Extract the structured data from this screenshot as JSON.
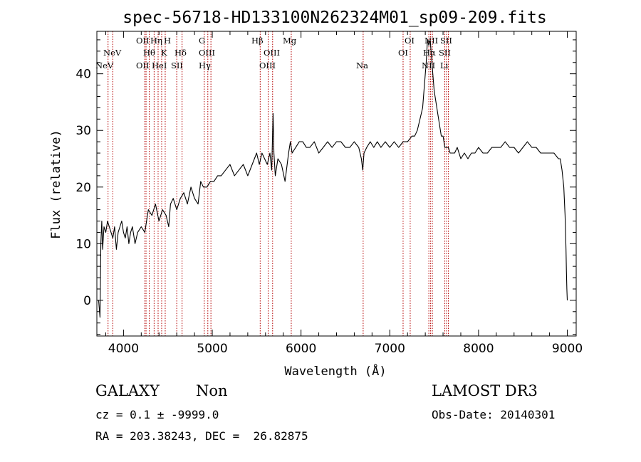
{
  "chart_data": {
    "type": "line",
    "title": "spec-56718-HD133100N262324M01_sp09-209.fits",
    "xlabel": "Wavelength (Å)",
    "ylabel": "Flux (relative)",
    "xlim": [
      3700,
      9100
    ],
    "ylim": [
      -6.3,
      47.5
    ],
    "xticks": [
      4000,
      5000,
      6000,
      7000,
      8000,
      9000
    ],
    "yticks": [
      0,
      10,
      20,
      30,
      40
    ],
    "series": [
      {
        "name": "spectrum",
        "x": [
          3720,
          3735,
          3745,
          3755,
          3765,
          3780,
          3800,
          3820,
          3840,
          3860,
          3880,
          3900,
          3920,
          3940,
          3960,
          3980,
          4000,
          4020,
          4040,
          4060,
          4080,
          4100,
          4130,
          4160,
          4200,
          4240,
          4280,
          4320,
          4360,
          4400,
          4440,
          4480,
          4510,
          4530,
          4560,
          4600,
          4640,
          4680,
          4720,
          4760,
          4800,
          4840,
          4870,
          4900,
          4940,
          4980,
          5020,
          5060,
          5100,
          5150,
          5200,
          5250,
          5300,
          5350,
          5400,
          5450,
          5500,
          5530,
          5560,
          5590,
          5620,
          5650,
          5670,
          5685,
          5695,
          5710,
          5740,
          5780,
          5820,
          5860,
          5880,
          5900,
          5940,
          5980,
          6020,
          6060,
          6100,
          6150,
          6200,
          6250,
          6300,
          6350,
          6400,
          6450,
          6500,
          6550,
          6600,
          6650,
          6680,
          6695,
          6710,
          6740,
          6780,
          6820,
          6860,
          6900,
          6950,
          7000,
          7050,
          7100,
          7150,
          7200,
          7250,
          7280,
          7310,
          7340,
          7370,
          7390,
          7410,
          7425,
          7440,
          7455,
          7470,
          7485,
          7500,
          7520,
          7540,
          7560,
          7580,
          7600,
          7620,
          7640,
          7660,
          7680,
          7700,
          7730,
          7760,
          7800,
          7840,
          7880,
          7920,
          7960,
          8000,
          8050,
          8100,
          8150,
          8200,
          8250,
          8300,
          8350,
          8400,
          8450,
          8500,
          8550,
          8600,
          8650,
          8700,
          8750,
          8800,
          8850,
          8900,
          8920,
          8940,
          8960,
          8975,
          8985,
          8990,
          8995,
          9000
        ],
        "values": [
          0,
          -3,
          10,
          14,
          9,
          13,
          12,
          14,
          13,
          12,
          11,
          13,
          9,
          12,
          13,
          14,
          12,
          11,
          13,
          10,
          12,
          13,
          10,
          12,
          13,
          12,
          16,
          15,
          17,
          14,
          16,
          15,
          13,
          17,
          18,
          16,
          18,
          19,
          17,
          20,
          18,
          17,
          21,
          20,
          20,
          21,
          21,
          22,
          22,
          23,
          24,
          22,
          23,
          24,
          22,
          24,
          26,
          24,
          26,
          25,
          24,
          26,
          23,
          33,
          26,
          22,
          25,
          24,
          21,
          26,
          28,
          26,
          27,
          28,
          28,
          27,
          27,
          28,
          26,
          27,
          28,
          27,
          28,
          28,
          27,
          27,
          28,
          27,
          25,
          23,
          26,
          27,
          28,
          27,
          28,
          27,
          28,
          27,
          28,
          27,
          28,
          28,
          29,
          29,
          30,
          32,
          34,
          38,
          42,
          46,
          45,
          46,
          43,
          40,
          37,
          35,
          33,
          31,
          29,
          29,
          27,
          27,
          27,
          26,
          26,
          26,
          27,
          25,
          26,
          25,
          26,
          26,
          27,
          26,
          26,
          27,
          27,
          27,
          28,
          27,
          27,
          26,
          27,
          28,
          27,
          27,
          26,
          26,
          26,
          26,
          25,
          25,
          23,
          20,
          15,
          9,
          5,
          2,
          0
        ]
      }
    ],
    "spectral_lines": [
      {
        "label": "NeV",
        "x": 3826
      },
      {
        "label": "NeV",
        "x": 3880
      },
      {
        "label": "OII",
        "x": 4240
      },
      {
        "label": "OII",
        "x": 4254
      },
      {
        "label": "Hη",
        "x": 4290
      },
      {
        "label": "Hθ",
        "x": 4345
      },
      {
        "label": "HeI",
        "x": 4390
      },
      {
        "label": "H",
        "x": 4430
      },
      {
        "label": "K",
        "x": 4470
      },
      {
        "label": "SII",
        "x": 4600
      },
      {
        "label": "Hδ",
        "x": 4660
      },
      {
        "label": "G",
        "x": 4910
      },
      {
        "label": "Hγ",
        "x": 4950
      },
      {
        "label": "OIII",
        "x": 4985
      },
      {
        "label": "Hβ",
        "x": 5540
      },
      {
        "label": "OIII",
        "x": 5630
      },
      {
        "label": "OIII",
        "x": 5680
      },
      {
        "label": "Mg",
        "x": 5890
      },
      {
        "label": "Na",
        "x": 6700
      },
      {
        "label": "OI",
        "x": 7150
      },
      {
        "label": "OI",
        "x": 7230
      },
      {
        "label": "NII",
        "x": 7440
      },
      {
        "label": "Hα",
        "x": 7460
      },
      {
        "label": "NII",
        "x": 7480
      },
      {
        "label": "SII",
        "x": 7620
      },
      {
        "label": "SII",
        "x": 7640
      },
      {
        "label": "Li",
        "x": 7660
      }
    ],
    "grid": false,
    "legend": "none"
  },
  "line_labels": {
    "row1": [
      "OII",
      "Hη",
      "H",
      "G",
      "Hβ",
      "Mg",
      "OI",
      "NII",
      "SII"
    ],
    "row2": [
      "NeV",
      "Hθ",
      "K",
      "Hδ",
      "OIII",
      "OIII",
      "OI",
      "Hα",
      "SII"
    ],
    "row3": [
      "NeV",
      "OII",
      "HeI",
      "SII",
      "Hγ",
      "OIII",
      "Na",
      "NII",
      "Li"
    ]
  },
  "footer": {
    "class_label": "GALAXY",
    "subclass_label": "Non",
    "survey": "LAMOST DR3",
    "cz": "cz = 0.1 ± -9999.0",
    "obs_date": "Obs-Date: 20140301",
    "radec": "RA = 203.38243, DEC =  26.82875"
  },
  "colors": {
    "spectrum": "#000000",
    "line_marker": "#b40000",
    "axes": "#000000"
  }
}
